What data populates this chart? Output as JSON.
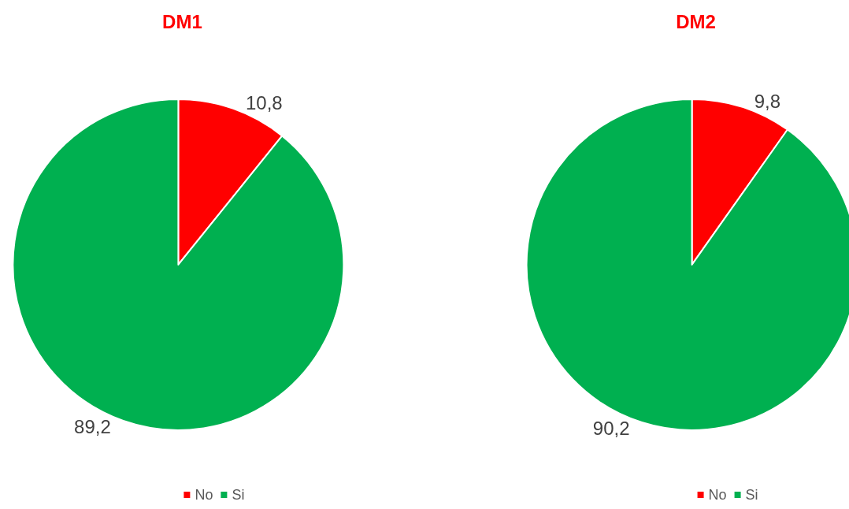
{
  "chart_data": [
    {
      "type": "pie",
      "title": "DM1",
      "categories": [
        "No",
        "Si"
      ],
      "values": [
        10.8,
        89.2
      ],
      "colors": [
        "#ff0000",
        "#00b050"
      ],
      "value_labels": [
        "10,8",
        "89,2"
      ],
      "legend": "bottom"
    },
    {
      "type": "pie",
      "title": "DM2",
      "categories": [
        "No",
        "Si"
      ],
      "values": [
        9.8,
        90.2
      ],
      "colors": [
        "#ff0000",
        "#00b050"
      ],
      "value_labels": [
        "9,8",
        "90,2"
      ],
      "legend": "bottom"
    }
  ]
}
